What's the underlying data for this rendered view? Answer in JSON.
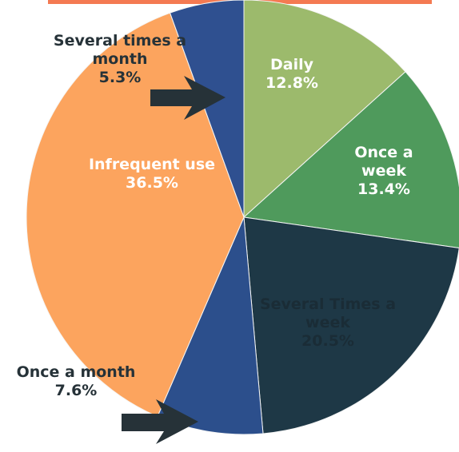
{
  "chart_data": {
    "type": "pie",
    "categories": [
      "Daily",
      "Once a week",
      "Several Times a week",
      "Once a month",
      "Infrequent use",
      "Several times a month"
    ],
    "values": [
      12.8,
      13.4,
      20.5,
      7.6,
      36.5,
      5.3
    ],
    "value_labels": [
      "12.8%",
      "13.4%",
      "20.5%",
      "7.6%",
      "36.5%",
      "5.3%"
    ],
    "colors": [
      "#9cba6c",
      "#4f9a5c",
      "#1e3846",
      "#2c4f8c",
      "#fca45e",
      "#2f5090"
    ]
  }
}
